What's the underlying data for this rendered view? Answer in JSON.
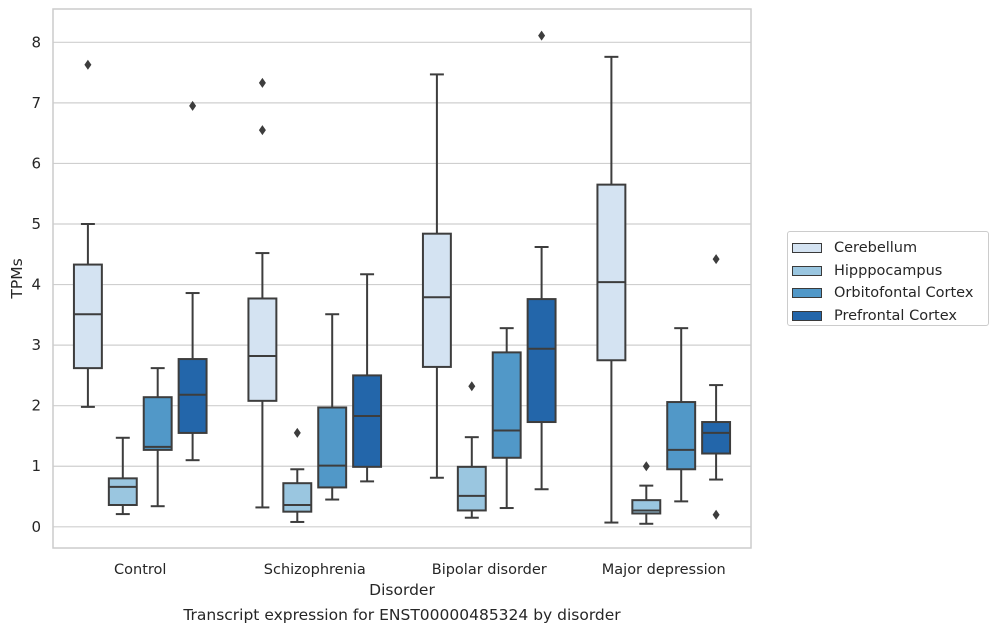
{
  "chart_data": {
    "type": "boxplot",
    "title": "Transcript expression for ENST00000485324 by disorder",
    "xlabel": "Disorder",
    "ylabel": "TPMs",
    "ylim": [
      -0.35,
      8.55
    ],
    "yticks": [
      0,
      1,
      2,
      3,
      4,
      5,
      6,
      7,
      8
    ],
    "grid": true,
    "legend_position": "right",
    "categories": [
      "Control",
      "Schizophrenia",
      "Bipolar disorder",
      "Major depression"
    ],
    "series": [
      {
        "name": "Cerebellum",
        "color": "#d4e3f2",
        "boxes": [
          {
            "min": 1.98,
            "q1": 2.62,
            "median": 3.51,
            "q3": 4.33,
            "max": 5.0,
            "outliers": [
              7.63
            ]
          },
          {
            "min": 0.32,
            "q1": 2.08,
            "median": 2.82,
            "q3": 3.77,
            "max": 4.52,
            "outliers": [
              6.55,
              7.33
            ]
          },
          {
            "min": 0.81,
            "q1": 2.64,
            "median": 3.79,
            "q3": 4.84,
            "max": 7.47,
            "outliers": []
          },
          {
            "min": 0.07,
            "q1": 2.75,
            "median": 4.04,
            "q3": 5.65,
            "max": 7.76,
            "outliers": []
          }
        ]
      },
      {
        "name": "Hipppocampus",
        "color": "#9ac6e0",
        "boxes": [
          {
            "min": 0.21,
            "q1": 0.36,
            "median": 0.66,
            "q3": 0.8,
            "max": 1.47,
            "outliers": []
          },
          {
            "min": 0.08,
            "q1": 0.25,
            "median": 0.36,
            "q3": 0.72,
            "max": 0.95,
            "outliers": [
              1.55
            ]
          },
          {
            "min": 0.15,
            "q1": 0.27,
            "median": 0.51,
            "q3": 0.99,
            "max": 1.48,
            "outliers": [
              2.32
            ]
          },
          {
            "min": 0.05,
            "q1": 0.22,
            "median": 0.27,
            "q3": 0.44,
            "max": 0.68,
            "outliers": [
              1.0
            ]
          }
        ]
      },
      {
        "name": "Orbitofontal Cortex",
        "color": "#5198c8",
        "boxes": [
          {
            "min": 0.34,
            "q1": 1.27,
            "median": 1.32,
            "q3": 2.14,
            "max": 2.62,
            "outliers": []
          },
          {
            "min": 0.45,
            "q1": 0.65,
            "median": 1.01,
            "q3": 1.97,
            "max": 3.51,
            "outliers": []
          },
          {
            "min": 0.31,
            "q1": 1.14,
            "median": 1.59,
            "q3": 2.88,
            "max": 3.28,
            "outliers": []
          },
          {
            "min": 0.42,
            "q1": 0.95,
            "median": 1.27,
            "q3": 2.06,
            "max": 3.28,
            "outliers": []
          }
        ]
      },
      {
        "name": "Prefrontal Cortex",
        "color": "#2366aa",
        "boxes": [
          {
            "min": 1.1,
            "q1": 1.55,
            "median": 2.18,
            "q3": 2.77,
            "max": 3.86,
            "outliers": [
              6.95
            ]
          },
          {
            "min": 0.75,
            "q1": 0.99,
            "median": 1.83,
            "q3": 2.5,
            "max": 4.17,
            "outliers": []
          },
          {
            "min": 0.62,
            "q1": 1.73,
            "median": 2.94,
            "q3": 3.76,
            "max": 4.62,
            "outliers": [
              8.11
            ]
          },
          {
            "min": 0.78,
            "q1": 1.21,
            "median": 1.55,
            "q3": 1.73,
            "max": 2.34,
            "outliers": [
              0.2,
              4.42
            ]
          }
        ]
      }
    ]
  }
}
